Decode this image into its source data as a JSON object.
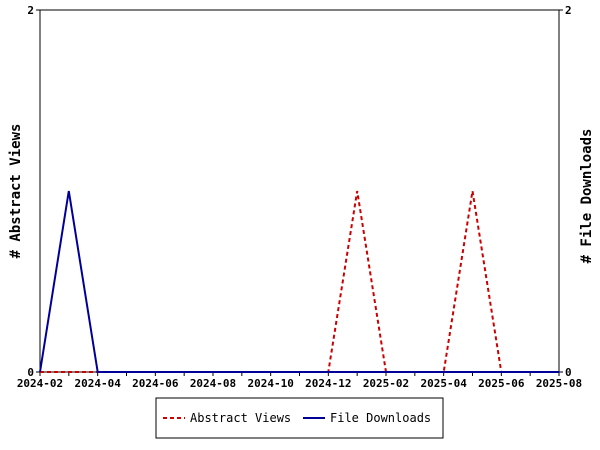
{
  "chart_data": {
    "type": "line",
    "title": "",
    "xlabel": "",
    "ylabel_left": "# Abstract Views",
    "ylabel_right": "# File Downloads",
    "x_ticks": [
      "2024-02",
      "2024-04",
      "2024-06",
      "2024-08",
      "2024-10",
      "2024-12",
      "2025-02",
      "2025-04",
      "2025-06",
      "2025-08"
    ],
    "x": [
      "2024-02",
      "2024-03",
      "2024-04",
      "2024-05",
      "2024-06",
      "2024-07",
      "2024-08",
      "2024-09",
      "2024-10",
      "2024-11",
      "2024-12",
      "2025-01",
      "2025-02",
      "2025-03",
      "2025-04",
      "2025-05",
      "2025-06",
      "2025-07",
      "2025-08"
    ],
    "ylim_left": [
      0,
      2
    ],
    "ylim_right": [
      0,
      2
    ],
    "y_ticks_left": [
      "0",
      "2"
    ],
    "y_ticks_right": [
      "0",
      "2"
    ],
    "grid": false,
    "legend_position": "bottom-center",
    "series": [
      {
        "name": "Abstract Views",
        "axis": "left",
        "color": "#cc0000",
        "style": "dashed",
        "values": [
          0,
          0,
          0,
          0,
          0,
          0,
          0,
          0,
          0,
          0,
          0,
          1,
          0,
          0,
          0,
          1,
          0,
          0,
          0
        ]
      },
      {
        "name": "File Downloads",
        "axis": "right",
        "color": "#000099",
        "style": "solid",
        "values": [
          0,
          1,
          0,
          0,
          0,
          0,
          0,
          0,
          0,
          0,
          0,
          0,
          0,
          0,
          0,
          0,
          0,
          0,
          0
        ]
      }
    ]
  }
}
